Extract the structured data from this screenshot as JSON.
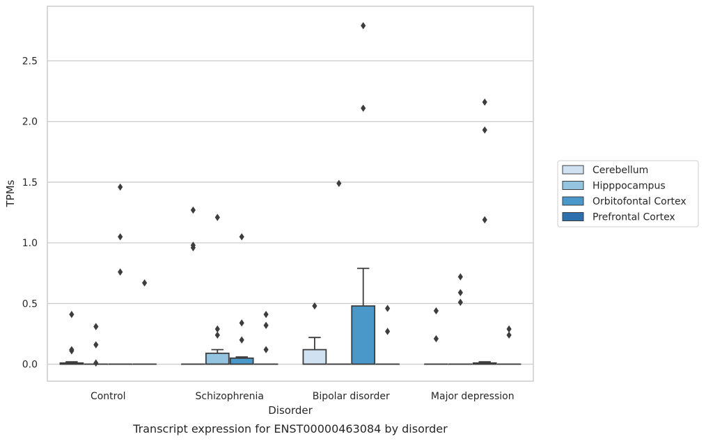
{
  "chart_data": {
    "type": "box",
    "title": "",
    "caption": "Transcript expression for ENST00000463084 by disorder",
    "xlabel": "Disorder",
    "ylabel": "TPMs",
    "ylim": [
      -0.14,
      2.95
    ],
    "yticks": [
      0.0,
      0.5,
      1.0,
      1.5,
      2.0,
      2.5
    ],
    "ytick_labels": [
      "0.0",
      "0.5",
      "1.0",
      "1.5",
      "2.0",
      "2.5"
    ],
    "grid": "horizontal",
    "legend_position": "right",
    "categories": [
      "Control",
      "Schizophrenia",
      "Bipolar disorder",
      "Major depression"
    ],
    "series": [
      {
        "name": "Cerebellum",
        "color": "#d0e1f2",
        "boxes": [
          {
            "q1": 0,
            "median": 0,
            "q3": 0.01,
            "whisker_low": 0,
            "whisker_high": 0.02,
            "outliers": [
              0.41,
              0.12,
              0.11
            ]
          },
          {
            "q1": 0,
            "median": 0,
            "q3": 0,
            "whisker_low": 0,
            "whisker_high": 0,
            "outliers": []
          },
          {
            "q1": 0,
            "median": 0,
            "q3": 0.12,
            "whisker_low": 0,
            "whisker_high": 0.22,
            "outliers": [
              0.48
            ]
          },
          {
            "q1": 0,
            "median": 0,
            "q3": 0,
            "whisker_low": 0,
            "whisker_high": 0,
            "outliers": [
              0.44,
              0.21
            ]
          }
        ]
      },
      {
        "name": "Hipppocampus",
        "color": "#94c4df",
        "boxes": [
          {
            "q1": 0,
            "median": 0,
            "q3": 0,
            "whisker_low": 0,
            "whisker_high": 0,
            "outliers": [
              0.31,
              0.16,
              0.01
            ]
          },
          {
            "q1": 0,
            "median": 0,
            "q3": 0.09,
            "whisker_low": 0,
            "whisker_high": 0.12,
            "outliers": [
              1.21,
              0.29,
              0.24
            ]
          },
          {
            "q1": 0,
            "median": 0,
            "q3": 0,
            "whisker_low": 0,
            "whisker_high": 0,
            "outliers": [
              1.49
            ]
          },
          {
            "q1": 0,
            "median": 0,
            "q3": 0,
            "whisker_low": 0,
            "whisker_high": 0,
            "outliers": [
              0.72,
              0.59,
              0.51
            ]
          }
        ]
      },
      {
        "name": "Orbitofontal Cortex",
        "color": "#4a98c9",
        "boxes": [
          {
            "q1": 0,
            "median": 0,
            "q3": 0,
            "whisker_low": 0,
            "whisker_high": 0,
            "outliers": [
              1.46,
              1.05,
              0.76
            ]
          },
          {
            "q1": 0,
            "median": 0,
            "q3": 0.05,
            "whisker_low": 0,
            "whisker_high": 0.06,
            "outliers": [
              1.05,
              0.34,
              0.2
            ]
          },
          {
            "q1": 0,
            "median": 0,
            "q3": 0.48,
            "whisker_low": 0,
            "whisker_high": 0.79,
            "outliers": [
              2.79,
              2.11
            ]
          },
          {
            "q1": 0,
            "median": 0,
            "q3": 0.01,
            "whisker_low": 0,
            "whisker_high": 0.02,
            "outliers": [
              2.16,
              1.93,
              1.19
            ]
          }
        ]
      },
      {
        "name": "Prefrontal Cortex",
        "color": "#2e6fae",
        "boxes": [
          {
            "q1": 0,
            "median": 0,
            "q3": 0,
            "whisker_low": 0,
            "whisker_high": 0,
            "outliers": [
              0.67
            ]
          },
          {
            "q1": 0,
            "median": 0,
            "q3": 0,
            "whisker_low": 0,
            "whisker_high": 0,
            "outliers": [
              0.41,
              0.32,
              0.12
            ]
          },
          {
            "q1": 0,
            "median": 0,
            "q3": 0,
            "whisker_low": 0,
            "whisker_high": 0,
            "outliers": [
              0.46,
              0.27
            ]
          },
          {
            "q1": 0,
            "median": 0,
            "q3": 0,
            "whisker_low": 0,
            "whisker_high": 0,
            "outliers": [
              0.29,
              0.24
            ]
          }
        ]
      }
    ],
    "extra_outliers": [
      {
        "category": 1,
        "series": 0,
        "values": [
          1.27,
          0.98,
          0.96
        ]
      }
    ]
  }
}
